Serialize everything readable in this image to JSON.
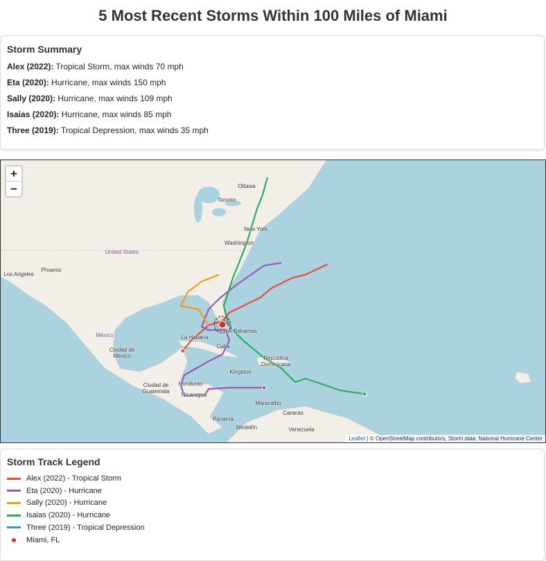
{
  "header": {
    "title": "5 Most Recent Storms Within 100 Miles of Miami"
  },
  "summary": {
    "heading": "Storm Summary",
    "items": [
      {
        "name": "Alex (2022):",
        "detail": "Tropical Storm, max winds 70 mph"
      },
      {
        "name": "Eta (2020):",
        "detail": "Hurricane, max winds 150 mph"
      },
      {
        "name": "Sally (2020):",
        "detail": "Hurricane, max winds 109 mph"
      },
      {
        "name": "Isaias (2020):",
        "detail": "Hurricane, max winds 85 mph"
      },
      {
        "name": "Three (2019):",
        "detail": "Tropical Depression, max winds 35 mph"
      }
    ]
  },
  "map": {
    "zoom_in": "+",
    "zoom_out": "−",
    "labels": [
      "Ottawa",
      "Toronto",
      "New York",
      "Washington",
      "United States",
      "Phoenix",
      "Los Angeles",
      "México",
      "Ciudad de México",
      "La Habana",
      "Cuba",
      "The Bahamas",
      "República Dominicana",
      "Kingston",
      "Honduras",
      "Ciudad de Guatemala",
      "Nicaragua",
      "Maracaibo",
      "Caracas",
      "Panamá",
      "Medellín",
      "Venezuela"
    ],
    "attribution_link": "Leaflet",
    "attribution_text": "| © OpenStreetMap contributors, Storm data: National Hurricane Center"
  },
  "legend": {
    "heading": "Storm Track Legend",
    "items": [
      {
        "label": "Alex (2022) - Tropical Storm",
        "color": "#e74c3c"
      },
      {
        "label": "Eta (2020) - Hurricane",
        "color": "#9b59b6"
      },
      {
        "label": "Sally (2020) - Hurricane",
        "color": "#f39c12"
      },
      {
        "label": "Isaias (2020) - Hurricane",
        "color": "#27ae60"
      },
      {
        "label": "Three (2019) - Tropical Depression",
        "color": "#3498db"
      },
      {
        "label": "Miami, FL",
        "color": "#c0392b"
      }
    ]
  }
}
